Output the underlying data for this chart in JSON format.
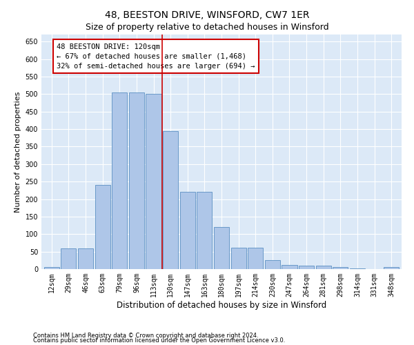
{
  "title": "48, BEESTON DRIVE, WINSFORD, CW7 1ER",
  "subtitle": "Size of property relative to detached houses in Winsford",
  "xlabel": "Distribution of detached houses by size in Winsford",
  "ylabel": "Number of detached properties",
  "categories": [
    "12sqm",
    "29sqm",
    "46sqm",
    "63sqm",
    "79sqm",
    "96sqm",
    "113sqm",
    "130sqm",
    "147sqm",
    "163sqm",
    "180sqm",
    "197sqm",
    "214sqm",
    "230sqm",
    "247sqm",
    "264sqm",
    "281sqm",
    "298sqm",
    "314sqm",
    "331sqm",
    "348sqm"
  ],
  "values": [
    5,
    60,
    60,
    240,
    505,
    505,
    500,
    395,
    220,
    220,
    120,
    62,
    62,
    25,
    12,
    10,
    10,
    6,
    2,
    0,
    6
  ],
  "bar_color": "#aec6e8",
  "bar_edge_color": "#5a8fc2",
  "vline_x_index": 6.5,
  "vline_color": "#cc0000",
  "annotation_text": "48 BEESTON DRIVE: 120sqm\n← 67% of detached houses are smaller (1,468)\n32% of semi-detached houses are larger (694) →",
  "annotation_box_color": "#cc0000",
  "ylim": [
    0,
    670
  ],
  "yticks": [
    0,
    50,
    100,
    150,
    200,
    250,
    300,
    350,
    400,
    450,
    500,
    550,
    600,
    650
  ],
  "footnote1": "Contains HM Land Registry data © Crown copyright and database right 2024.",
  "footnote2": "Contains public sector information licensed under the Open Government Licence v3.0.",
  "background_color": "#dce9f7",
  "title_fontsize": 10,
  "subtitle_fontsize": 9,
  "xlabel_fontsize": 8.5,
  "ylabel_fontsize": 8,
  "tick_fontsize": 7,
  "annotation_fontsize": 7.5
}
